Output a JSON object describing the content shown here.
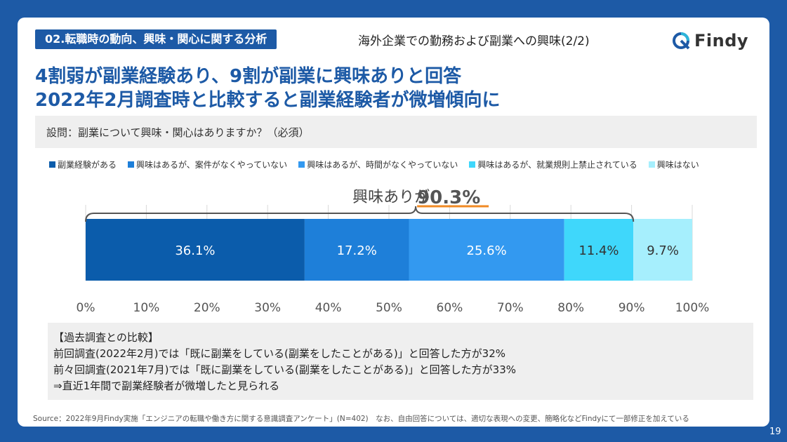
{
  "header": {
    "section_tag": "02.転職時の動向、興味・関心に関する分析",
    "section_subtitle": "海外企業での勤務および副業への興味(2/2)",
    "logo_text": "Findy"
  },
  "headline": {
    "line1": "4割弱が副業経験あり、9割が副業に興味ありと回答",
    "line2": "2022年2月調査時と比較すると副業経験者が微増傾向に"
  },
  "question": "設問：副業について興味・関心はありますか？（必須）",
  "chart_data": {
    "type": "bar",
    "orientation": "horizontal-stacked-100",
    "series": [
      {
        "name": "副業経験がある",
        "value": 36.1,
        "label": "36.1%",
        "color": "#0b5cab"
      },
      {
        "name": "興味はあるが、案件がなくやっていない",
        "value": 17.2,
        "label": "17.2%",
        "color": "#1e7fd9"
      },
      {
        "name": "興味はあるが、時間がなくやっていない",
        "value": 25.6,
        "label": "25.6%",
        "color": "#3399f0"
      },
      {
        "name": "興味はあるが、就業規則上禁止されている",
        "value": 11.4,
        "label": "11.4%",
        "color": "#3fd7fb"
      },
      {
        "name": "興味はない",
        "value": 9.7,
        "label": "9.7%",
        "color": "#a6effd"
      }
    ],
    "x_ticks": [
      "0%",
      "10%",
      "20%",
      "30%",
      "40%",
      "50%",
      "60%",
      "70%",
      "80%",
      "90%",
      "100%"
    ],
    "xlim": [
      0,
      100
    ],
    "annotation": {
      "prefix": "興味ありが",
      "value": "90.3%"
    },
    "legend_position": "top"
  },
  "comparison": {
    "title": "【過去調査との比較】",
    "line1": "前回調査(2022年2月)では「既に副業をしている(副業をしたことがある)」と回答した方が32%",
    "line2": "前々回調査(2021年7月)では「既に副業をしている(副業をしたことがある)」と回答した方が33%",
    "line3": "⇒直近1年間で副業経験者が微増したと見られる"
  },
  "source": "Source：2022年9月Findy実施「エンジニアの転職や働き方に関する意識調査アンケート」(N=402)　なお、自由回答については、適切な表現への変更、簡略化などFindyにて一部修正を加えている",
  "page_number": "19"
}
